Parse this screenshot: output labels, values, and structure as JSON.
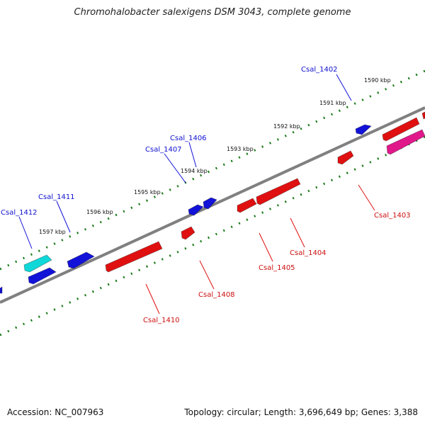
{
  "title": "Chromohalobacter salexigens DSM 3043, complete genome",
  "footer": {
    "accession": "Accession: NC_007963",
    "summary": "Topology: circular; Length: 3,696,649 bp; Genes: 3,388"
  },
  "colors": {
    "backbone": "#808080",
    "tick": "#1a7a1a",
    "blue_gene": "#1212d8",
    "red_gene": "#e01010",
    "cyan_gene": "#10d8d8",
    "pink_gene": "#e0188a"
  },
  "scale_labels": [
    "1590 kbp",
    "1591 kbp",
    "1592 kbp",
    "1593 kbp",
    "1594 kbp",
    "1595 kbp",
    "1596 kbp",
    "1597 kbp"
  ],
  "gene_labels_forward": [
    "Csal_1402",
    "Csal_1406",
    "Csal_1407",
    "Csal_1411",
    "Csal_1412"
  ],
  "gene_labels_reverse": [
    "Csal_1403",
    "Csal_1404",
    "Csal_1405",
    "Csal_1408",
    "Csal_1410"
  ]
}
